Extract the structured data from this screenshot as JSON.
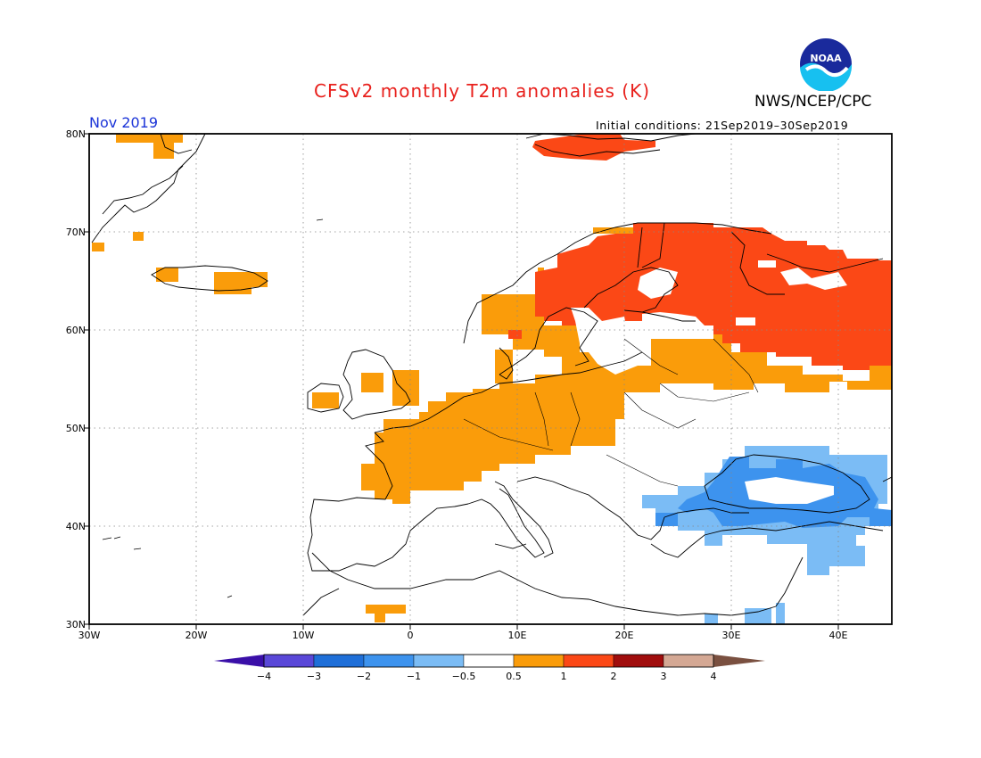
{
  "header": {
    "title": "CFSv2 monthly T2m anomalies (K)",
    "agency": "NWS/NCEP/CPC",
    "month": "Nov 2019",
    "initial_conditions": "Initial conditions: 21Sep2019–30Sep2019",
    "logo_text": "NOAA"
  },
  "map": {
    "region": "Europe",
    "lon_range": [
      -30,
      45
    ],
    "lat_range": [
      30,
      80
    ],
    "lat_labels": [
      "30N",
      "40N",
      "50N",
      "60N",
      "70N",
      "80N"
    ],
    "lon_labels": [
      "30W",
      "20W",
      "10W",
      "0",
      "10E",
      "20E",
      "30E",
      "40E"
    ],
    "grid": "dotted"
  },
  "colorbar": {
    "labels": [
      "−4",
      "−3",
      "−2",
      "−1",
      "−0.5",
      "0.5",
      "1",
      "2",
      "3",
      "4"
    ],
    "colors": [
      "#3a0fa8",
      "#5a48d8",
      "#1f6fd8",
      "#3d93ee",
      "#7bbcf5",
      "#ffffff",
      "#fa9c0a",
      "#fb4816",
      "#a00d0d",
      "#d4a894",
      "#7a5040"
    ]
  }
}
